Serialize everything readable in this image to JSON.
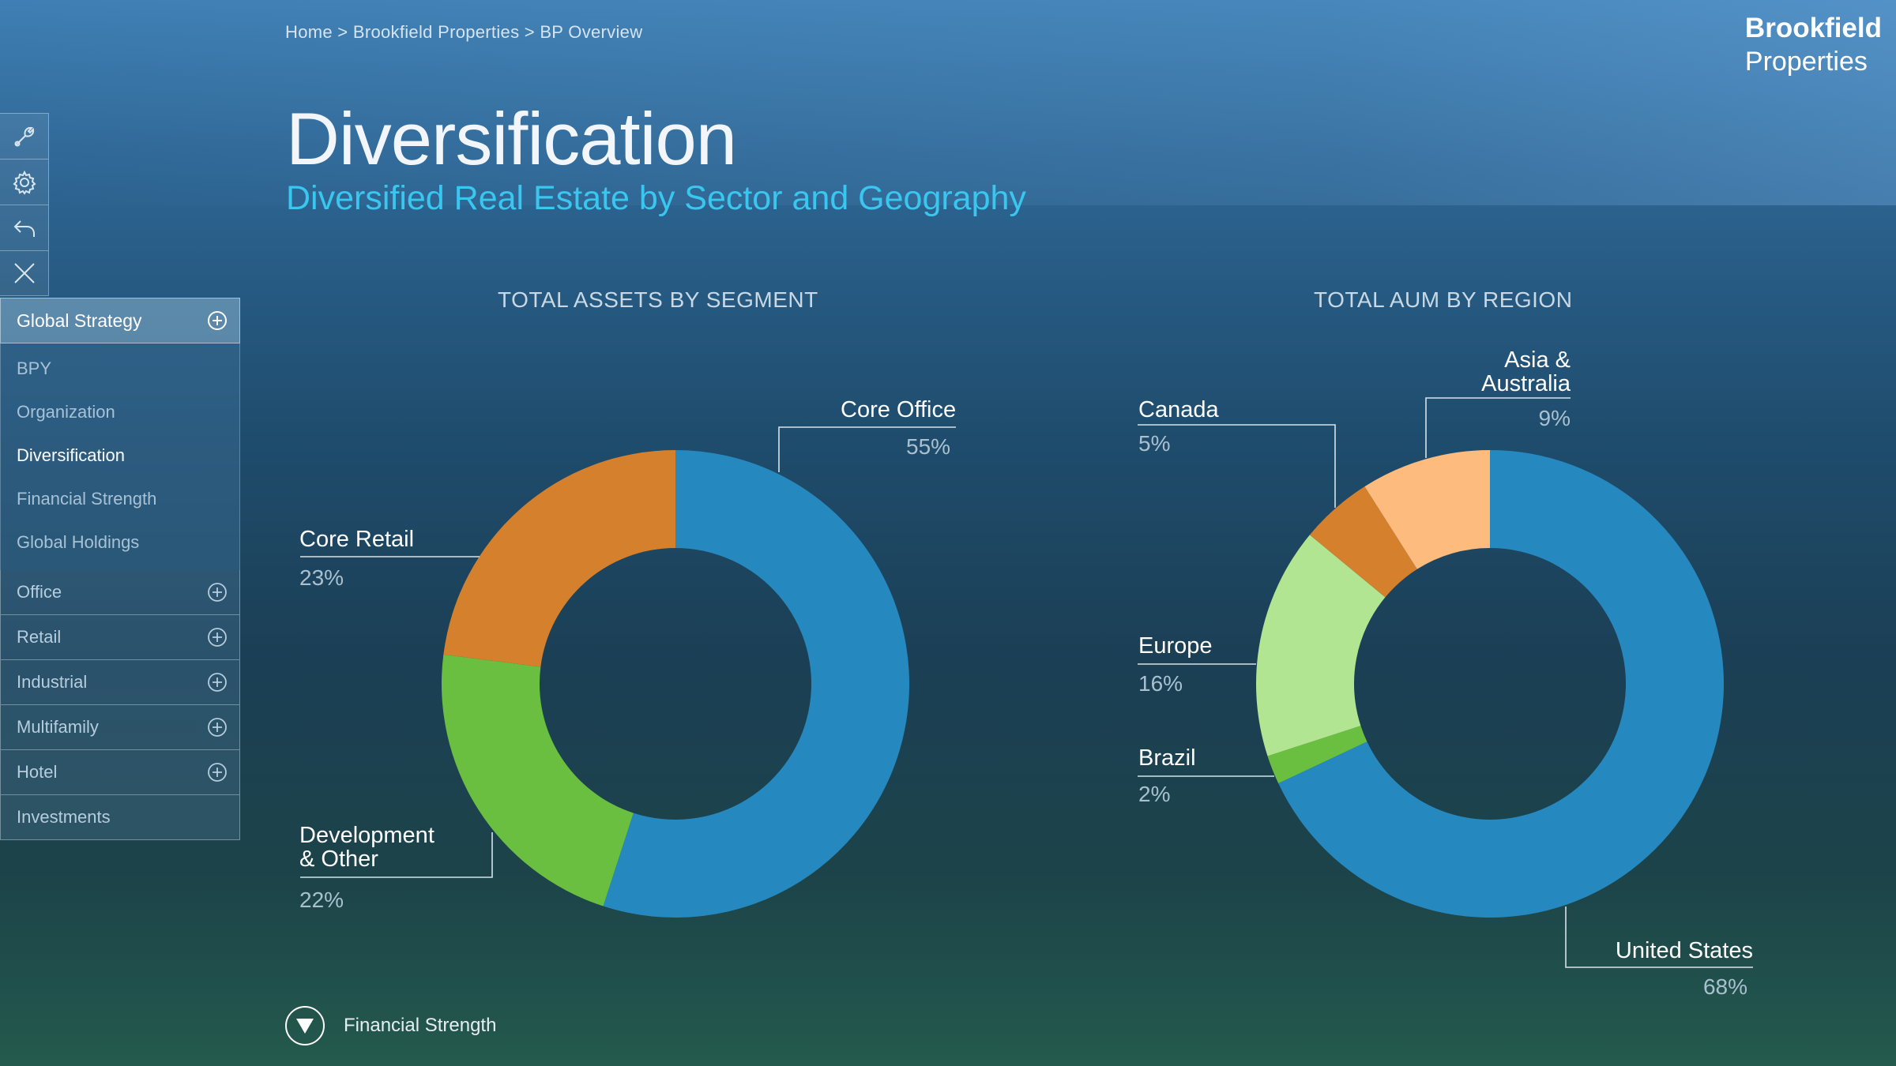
{
  "breadcrumb": "Home > Brookfield Properties > BP Overview",
  "logo": {
    "line1": "Brookfield",
    "line2": "Properties"
  },
  "title": "Diversification",
  "subtitle": "Diversified Real Estate by Sector and Geography",
  "tools": [
    {
      "icon": "wrench-icon"
    },
    {
      "icon": "gear-icon"
    },
    {
      "icon": "undo-icon"
    },
    {
      "icon": "close-icon"
    }
  ],
  "nav": {
    "header": "Global Strategy",
    "sub_items": [
      "BPY",
      "Organization",
      "Diversification",
      "Financial Strength",
      "Global Holdings"
    ],
    "active_sub_item": "Diversification",
    "rows": [
      {
        "label": "Office",
        "expandable": true
      },
      {
        "label": "Retail",
        "expandable": true
      },
      {
        "label": "Industrial",
        "expandable": true
      },
      {
        "label": "Multifamily",
        "expandable": true
      },
      {
        "label": "Hotel",
        "expandable": true
      },
      {
        "label": "Investments",
        "expandable": false
      }
    ]
  },
  "charts": {
    "segment": {
      "title": "TOTAL ASSETS BY SEGMENT",
      "labels": {
        "core_office": {
          "name": "Core Office",
          "pct": "55%"
        },
        "core_retail": {
          "name": "Core Retail",
          "pct": "23%"
        },
        "development": {
          "name": "Development\n& Other",
          "pct": "22%"
        }
      }
    },
    "region": {
      "title": "TOTAL AUM BY REGION",
      "labels": {
        "canada": {
          "name": "Canada",
          "pct": "5%"
        },
        "asia": {
          "name": "Asia &\nAustralia",
          "pct": "9%"
        },
        "europe": {
          "name": "Europe",
          "pct": "16%"
        },
        "brazil": {
          "name": "Brazil",
          "pct": "2%"
        },
        "us": {
          "name": "United States",
          "pct": "68%"
        }
      }
    }
  },
  "chart_data": [
    {
      "type": "pie",
      "title": "TOTAL ASSETS BY SEGMENT",
      "categories": [
        "Core Office",
        "Development & Other",
        "Core Retail"
      ],
      "values": [
        55,
        22,
        23
      ],
      "colors": [
        "#2589c0",
        "#6abf40",
        "#d5802c"
      ],
      "donut": true
    },
    {
      "type": "pie",
      "title": "TOTAL AUM BY REGION",
      "categories": [
        "United States",
        "Brazil",
        "Europe",
        "Canada",
        "Asia & Australia"
      ],
      "values": [
        68,
        2,
        16,
        5,
        9
      ],
      "colors": [
        "#2589c0",
        "#6abf40",
        "#b1e591",
        "#d5802c",
        "#fdbb7d"
      ],
      "donut": true
    }
  ],
  "bottom_nav": {
    "label": "Financial Strength"
  }
}
